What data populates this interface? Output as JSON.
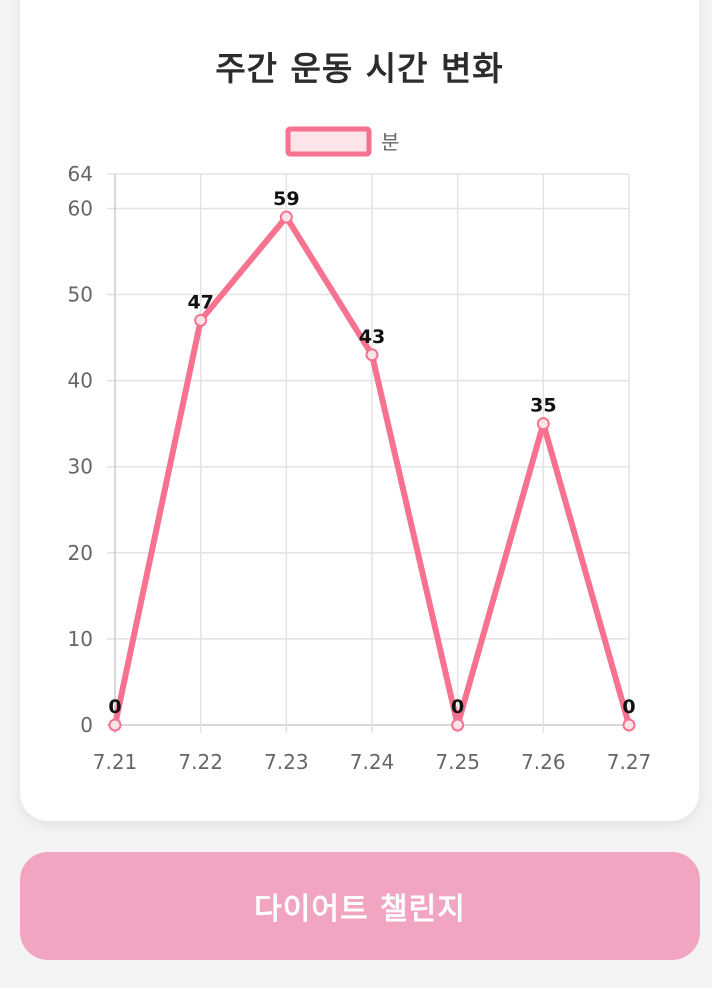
{
  "card": {
    "title": "주간 운동 시간 변화"
  },
  "chart_data": {
    "type": "line",
    "title": "주간 운동 시간 변화",
    "x": [
      "7.21",
      "7.22",
      "7.23",
      "7.24",
      "7.25",
      "7.26",
      "7.27"
    ],
    "series": [
      {
        "name": "분",
        "values": [
          0,
          47,
          59,
          43,
          0,
          35,
          0
        ]
      }
    ],
    "ylim": [
      0,
      64
    ],
    "yticks": [
      0,
      10,
      20,
      30,
      40,
      50,
      60,
      64
    ],
    "grid": true,
    "legend": "top-center",
    "data_labels": true,
    "colors": {
      "line": "#f6728f",
      "fill": "#fde4e9",
      "grid": "#e3e3e3"
    }
  },
  "button": {
    "label": "다이어트 챌린지",
    "color": "#f1a5c0"
  }
}
